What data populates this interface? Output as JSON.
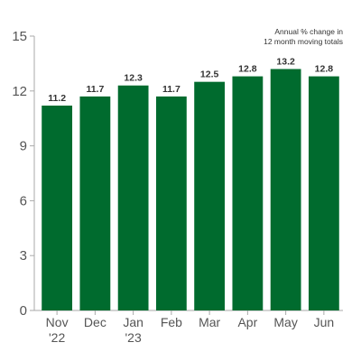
{
  "chart_data": {
    "type": "bar",
    "title": "",
    "note_lines": [
      "Annual % change in",
      "12 month moving totals"
    ],
    "categories": [
      {
        "line1": "Nov",
        "line2": "'22"
      },
      {
        "line1": "Dec",
        "line2": ""
      },
      {
        "line1": "Jan",
        "line2": "'23"
      },
      {
        "line1": "Feb",
        "line2": ""
      },
      {
        "line1": "Mar",
        "line2": ""
      },
      {
        "line1": "Apr",
        "line2": ""
      },
      {
        "line1": "May",
        "line2": ""
      },
      {
        "line1": "Jun",
        "line2": ""
      }
    ],
    "values": [
      11.2,
      11.7,
      12.3,
      11.7,
      12.5,
      12.8,
      13.2,
      12.8
    ],
    "value_labels": [
      "11.2",
      "11.7",
      "12.3",
      "11.7",
      "12.5",
      "12.8",
      "13.2",
      "12.8"
    ],
    "ylim": [
      0,
      15
    ],
    "yticks": [
      0,
      3,
      6,
      9,
      12,
      15
    ],
    "ytick_labels": [
      "0",
      "3",
      "6",
      "9",
      "12",
      "15"
    ],
    "xlabel": "",
    "ylabel": "",
    "grid": false,
    "colors": {
      "bar": "#006B2E",
      "axis": "#aaaaaa",
      "text": "#555555"
    }
  }
}
